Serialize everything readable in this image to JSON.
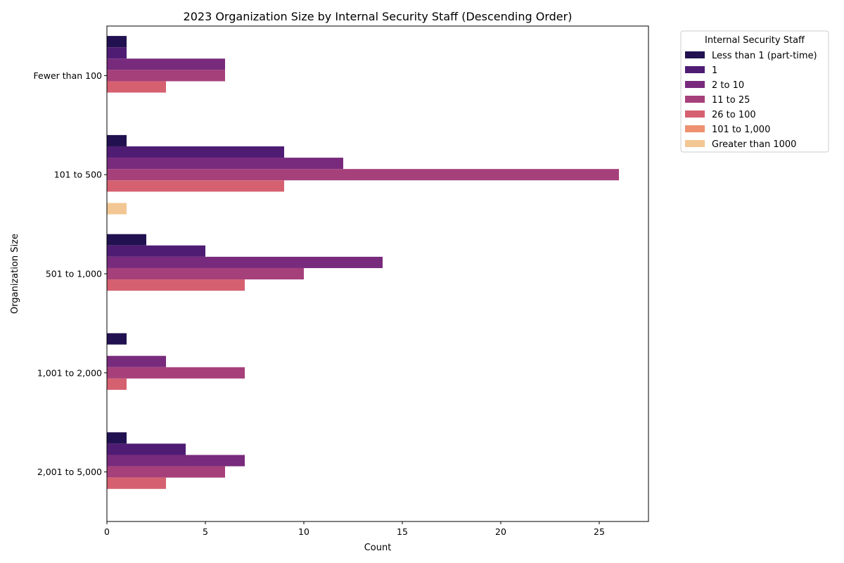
{
  "chart_data": {
    "type": "bar",
    "orientation": "horizontal",
    "title": "2023 Organization Size by Internal Security Staff (Descending Order)",
    "xlabel": "Count",
    "ylabel": "Organization Size",
    "xlim": [
      0,
      27.5
    ],
    "xticks": [
      0,
      5,
      10,
      15,
      20,
      25
    ],
    "grid": false,
    "legend_title": "Internal Security Staff",
    "legend_placement": "outside-right",
    "categories": [
      "Fewer than 100",
      "101 to 500",
      "501 to 1,000",
      "1,001 to 2,000",
      "2,001 to 5,000"
    ],
    "series": [
      {
        "name": "Less than 1 (part-time)",
        "color": "#221150",
        "values": [
          1,
          1,
          2,
          1,
          1
        ]
      },
      {
        "name": "1",
        "color": "#4f1c74",
        "values": [
          1,
          9,
          5,
          0,
          4
        ]
      },
      {
        "name": "2 to 10",
        "color": "#782a7c",
        "values": [
          6,
          12,
          14,
          3,
          7
        ]
      },
      {
        "name": "11 to 25",
        "color": "#a6407a",
        "values": [
          6,
          26,
          10,
          7,
          6
        ]
      },
      {
        "name": "26 to 100",
        "color": "#d56170",
        "values": [
          3,
          9,
          7,
          1,
          3
        ]
      },
      {
        "name": "101 to 1,000",
        "color": "#ed9170",
        "values": [
          0,
          0,
          0,
          0,
          0
        ]
      },
      {
        "name": "Greater than 1000",
        "color": "#f3c793",
        "values": [
          0,
          1,
          0,
          0,
          0
        ]
      }
    ]
  }
}
